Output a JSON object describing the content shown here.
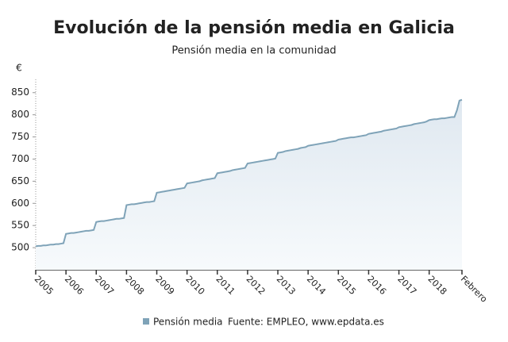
{
  "chart_data": {
    "type": "area",
    "title": "Evolución de la pensión media en Galicia",
    "subtitle": "Pensión media en la comunidad",
    "y_unit": "€",
    "source": "Fuente: EMPLEO, www.epdata.es",
    "categories": [
      "2005",
      null,
      null,
      null,
      null,
      null,
      null,
      null,
      null,
      null,
      null,
      null,
      "2006",
      null,
      null,
      null,
      null,
      null,
      null,
      null,
      null,
      null,
      null,
      null,
      "2007",
      null,
      null,
      null,
      null,
      null,
      null,
      null,
      null,
      null,
      null,
      null,
      "2008",
      null,
      null,
      null,
      null,
      null,
      null,
      null,
      null,
      null,
      null,
      null,
      "2009",
      null,
      null,
      null,
      null,
      null,
      null,
      null,
      null,
      null,
      null,
      null,
      "2010",
      null,
      null,
      null,
      null,
      null,
      null,
      null,
      null,
      null,
      null,
      null,
      "2011",
      null,
      null,
      null,
      null,
      null,
      null,
      null,
      null,
      null,
      null,
      null,
      "2012",
      null,
      null,
      null,
      null,
      null,
      null,
      null,
      null,
      null,
      null,
      null,
      "2013",
      null,
      null,
      null,
      null,
      null,
      null,
      null,
      null,
      null,
      null,
      null,
      "2014",
      null,
      null,
      null,
      null,
      null,
      null,
      null,
      null,
      null,
      null,
      null,
      "2015",
      null,
      null,
      null,
      null,
      null,
      null,
      null,
      null,
      null,
      null,
      null,
      "2016",
      null,
      null,
      null,
      null,
      null,
      null,
      null,
      null,
      null,
      null,
      null,
      "2017",
      null,
      null,
      null,
      null,
      null,
      null,
      null,
      null,
      null,
      null,
      null,
      "2018",
      null,
      null,
      null,
      null,
      null,
      null,
      null,
      null,
      null,
      null,
      null,
      null,
      "Febrero"
    ],
    "series": [
      {
        "name": "Pensión media",
        "color": "#7fa3b8",
        "values": [
          503,
          504,
          504,
          505,
          505,
          506,
          507,
          507,
          508,
          508,
          509,
          510,
          531,
          532,
          533,
          533,
          534,
          535,
          536,
          537,
          538,
          538,
          539,
          540,
          558,
          559,
          560,
          560,
          561,
          562,
          563,
          564,
          565,
          565,
          566,
          567,
          596,
          597,
          598,
          598,
          599,
          600,
          601,
          602,
          603,
          603,
          604,
          605,
          624,
          625,
          626,
          627,
          628,
          629,
          630,
          631,
          632,
          633,
          634,
          635,
          645,
          646,
          647,
          648,
          649,
          650,
          652,
          653,
          654,
          655,
          656,
          657,
          668,
          669,
          670,
          671,
          672,
          673,
          675,
          676,
          677,
          678,
          679,
          680,
          690,
          691,
          692,
          693,
          694,
          695,
          696,
          697,
          698,
          699,
          700,
          701,
          714,
          715,
          716,
          718,
          719,
          720,
          721,
          722,
          723,
          725,
          726,
          727,
          730,
          731,
          732,
          733,
          734,
          735,
          736,
          737,
          738,
          739,
          740,
          741,
          744,
          745,
          746,
          747,
          748,
          749,
          749,
          750,
          751,
          752,
          753,
          754,
          757,
          758,
          759,
          760,
          761,
          762,
          764,
          765,
          766,
          767,
          768,
          769,
          772,
          773,
          774,
          775,
          776,
          777,
          779,
          780,
          781,
          782,
          783,
          785,
          788,
          789,
          790,
          790,
          791,
          792,
          792,
          793,
          794,
          795,
          795,
          810,
          832,
          834
        ]
      }
    ],
    "ylim": [
      450,
      880
    ],
    "yticks": [
      500,
      550,
      600,
      650,
      700,
      750,
      800,
      850
    ]
  }
}
